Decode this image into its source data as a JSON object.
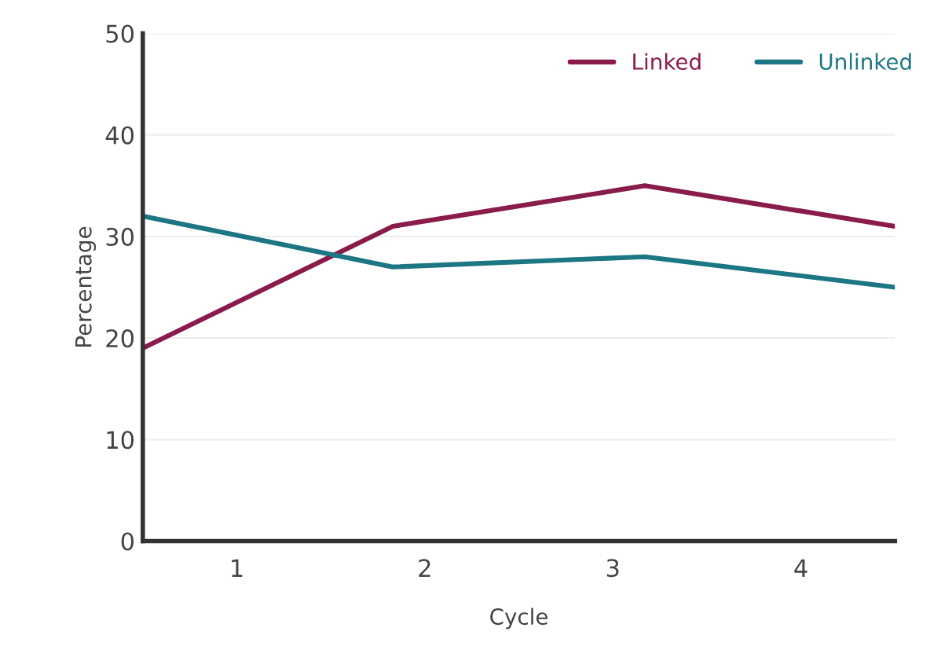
{
  "chart_data": {
    "type": "line",
    "xlabel": "Cycle",
    "ylabel": "Percentage",
    "x": [
      0.5,
      1.83,
      3.17,
      4.5
    ],
    "series": [
      {
        "name": "Linked",
        "color": "#8a1c4c",
        "values": [
          19,
          31,
          35,
          31
        ]
      },
      {
        "name": "Unlinked",
        "color": "#1d7683",
        "values": [
          32,
          27,
          28,
          25
        ]
      }
    ],
    "xlim": [
      0.5,
      4.5
    ],
    "xticks": [
      1,
      2,
      3,
      4
    ],
    "ylim": [
      0,
      50
    ],
    "yticks": [
      0,
      10,
      20,
      30,
      40,
      50
    ],
    "grid": "y",
    "legend": "top right",
    "marker": "none",
    "line_style": "solid"
  }
}
